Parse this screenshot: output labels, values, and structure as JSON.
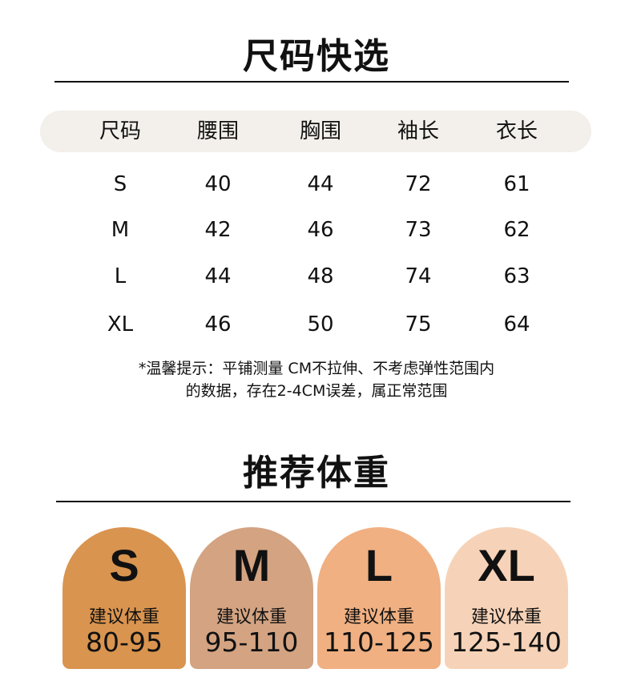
{
  "section1": {
    "title": "尺码快选"
  },
  "table": {
    "headers": [
      "尺码",
      "腰围",
      "胸围",
      "袖长",
      "衣长"
    ],
    "rows": [
      [
        "S",
        "40",
        "44",
        "72",
        "61"
      ],
      [
        "M",
        "42",
        "46",
        "73",
        "62"
      ],
      [
        "L",
        "44",
        "48",
        "74",
        "63"
      ],
      [
        "XL",
        "46",
        "50",
        "75",
        "64"
      ]
    ],
    "header_bg": "#f3efea"
  },
  "note": {
    "line1": "*温馨提示：平铺测量 CM不拉伸、不考虑弹性范围内",
    "line2": "的数据，存在2-4CM误差，属正常范围"
  },
  "section2": {
    "title": "推荐体重"
  },
  "weights": [
    {
      "size": "S",
      "label": "建议体重",
      "range": "80-95",
      "color": "#d9944f"
    },
    {
      "size": "M",
      "label": "建议体重",
      "range": "95-110",
      "color": "#d3a382"
    },
    {
      "size": "L",
      "label": "建议体重",
      "range": "110-125",
      "color": "#f0b082"
    },
    {
      "size": "XL",
      "label": "建议体重",
      "range": "125-140",
      "color": "#f6d3b8"
    }
  ]
}
